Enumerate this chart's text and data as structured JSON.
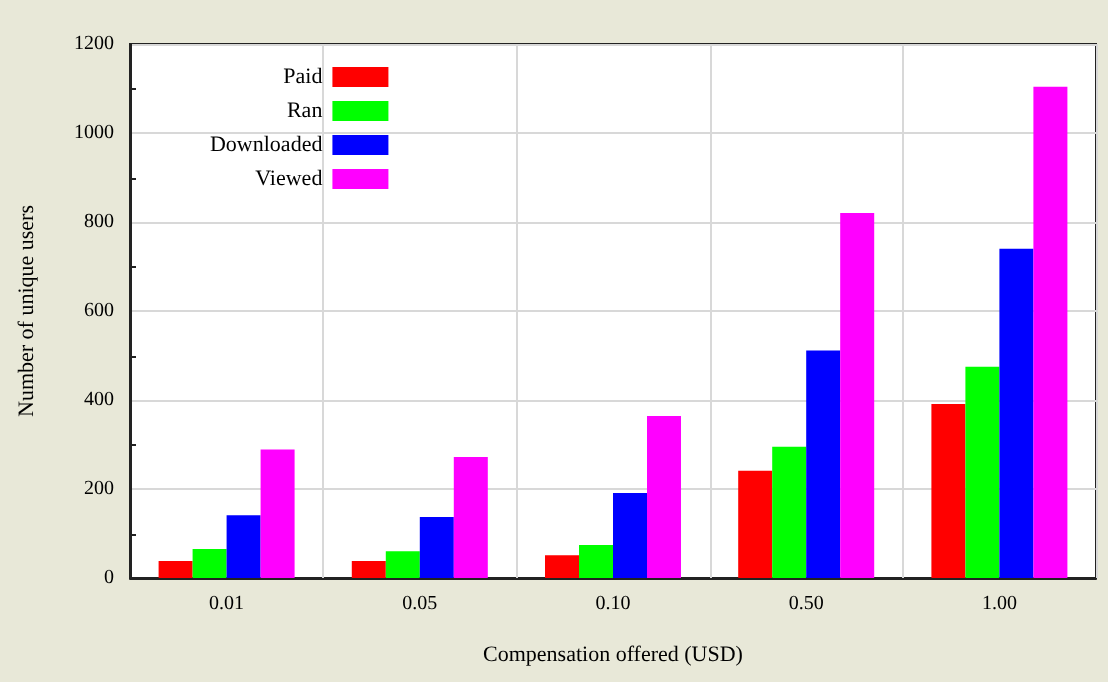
{
  "chart_data": {
    "type": "bar",
    "xlabel": "Compensation offered (USD)",
    "ylabel": "Number of unique users",
    "categories": [
      "0.01",
      "0.05",
      "0.10",
      "0.50",
      "1.00"
    ],
    "series": [
      {
        "name": "Paid",
        "color": "#ff0000",
        "values": [
          38,
          38,
          51,
          241,
          391
        ]
      },
      {
        "name": "Ran",
        "color": "#00ff00",
        "values": [
          65,
          60,
          74,
          295,
          475
        ]
      },
      {
        "name": "Downloaded",
        "color": "#0000ff",
        "values": [
          141,
          137,
          191,
          511,
          740
        ]
      },
      {
        "name": "Viewed",
        "color": "#ff00ff",
        "values": [
          289,
          272,
          364,
          820,
          1104
        ]
      }
    ],
    "ylim": [
      0,
      1200
    ],
    "yticks": [
      0,
      200,
      400,
      600,
      800,
      1000,
      1200
    ],
    "grid": true,
    "legend": "top left"
  }
}
